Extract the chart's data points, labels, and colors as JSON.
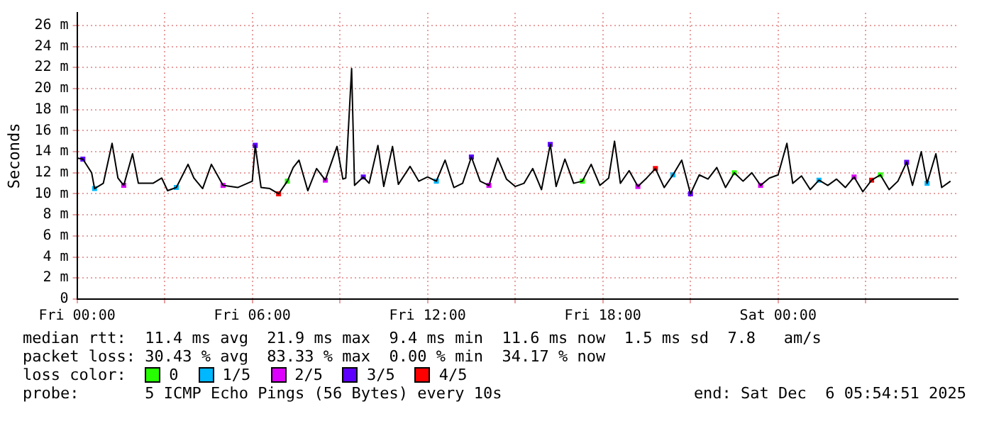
{
  "chart_data": {
    "type": "line",
    "ylabel": "Seconds",
    "legend_title": "loss color:",
    "legend": "bottom",
    "grid": true,
    "xlim": [
      "2025-12-05T00:00",
      "2025-12-06T06:09"
    ],
    "xticks": [
      {
        "value": "2025-12-05T00:00",
        "label": "Fri 00:00"
      },
      {
        "value": "2025-12-05T03:00",
        "label": null
      },
      {
        "value": "2025-12-05T06:00",
        "label": "Fri 06:00"
      },
      {
        "value": "2025-12-05T09:00",
        "label": null
      },
      {
        "value": "2025-12-05T12:00",
        "label": "Fri 12:00"
      },
      {
        "value": "2025-12-05T15:00",
        "label": null
      },
      {
        "value": "2025-12-05T18:00",
        "label": "Fri 18:00"
      },
      {
        "value": "2025-12-05T21:00",
        "label": null
      },
      {
        "value": "2025-12-06T00:00",
        "label": "Sat 00:00"
      },
      {
        "value": "2025-12-06T03:00",
        "label": null
      }
    ],
    "ylim": [
      0,
      27.2
    ],
    "yticks": [
      0,
      {
        "value": 2,
        "label": "2 m"
      },
      {
        "value": 4,
        "label": "4 m"
      },
      {
        "value": 6,
        "label": "6 m"
      },
      {
        "value": 8,
        "label": "8 m"
      },
      {
        "value": 10,
        "label": "10 m"
      },
      {
        "value": 12,
        "label": "12 m"
      },
      {
        "value": 14,
        "label": "14 m"
      },
      {
        "value": 16,
        "label": "16 m"
      },
      {
        "value": 18,
        "label": "18 m"
      },
      {
        "value": 20,
        "label": "20 m"
      },
      {
        "value": 22,
        "label": "22 m"
      },
      {
        "value": 24,
        "label": "24 m"
      },
      {
        "value": 26,
        "label": "26 m"
      }
    ],
    "series": [
      {
        "color": "#000000",
        "marker": "none",
        "x": [
          "2025-12-05T00:00",
          "2025-12-05T00:12",
          "2025-12-05T00:30",
          "2025-12-05T00:36",
          "2025-12-05T00:54",
          "2025-12-05T01:12",
          "2025-12-05T01:24",
          "2025-12-05T01:36",
          "2025-12-05T01:54",
          "2025-12-05T02:06",
          "2025-12-05T02:36",
          "2025-12-05T02:54",
          "2025-12-05T03:06",
          "2025-12-05T03:24",
          "2025-12-05T03:48",
          "2025-12-05T04:00",
          "2025-12-05T04:18",
          "2025-12-05T04:36",
          "2025-12-05T05:00",
          "2025-12-05T05:30",
          "2025-12-05T06:00",
          "2025-12-05T06:06",
          "2025-12-05T06:18",
          "2025-12-05T06:36",
          "2025-12-05T06:54",
          "2025-12-05T07:12",
          "2025-12-05T07:24",
          "2025-12-05T07:36",
          "2025-12-05T07:54",
          "2025-12-05T08:12",
          "2025-12-05T08:30",
          "2025-12-05T08:54",
          "2025-12-05T09:06",
          "2025-12-05T09:12",
          "2025-12-05T09:24",
          "2025-12-05T09:30",
          "2025-12-05T09:48",
          "2025-12-05T10:00",
          "2025-12-05T10:18",
          "2025-12-05T10:30",
          "2025-12-05T10:48",
          "2025-12-05T11:00",
          "2025-12-05T11:24",
          "2025-12-05T11:42",
          "2025-12-05T12:00",
          "2025-12-05T12:18",
          "2025-12-05T12:36",
          "2025-12-05T12:54",
          "2025-12-05T13:12",
          "2025-12-05T13:30",
          "2025-12-05T13:48",
          "2025-12-05T14:06",
          "2025-12-05T14:24",
          "2025-12-05T14:42",
          "2025-12-05T15:00",
          "2025-12-05T15:18",
          "2025-12-05T15:36",
          "2025-12-05T15:54",
          "2025-12-05T16:12",
          "2025-12-05T16:24",
          "2025-12-05T16:42",
          "2025-12-05T17:00",
          "2025-12-05T17:18",
          "2025-12-05T17:36",
          "2025-12-05T17:54",
          "2025-12-05T18:12",
          "2025-12-05T18:24",
          "2025-12-05T18:36",
          "2025-12-05T18:54",
          "2025-12-05T19:12",
          "2025-12-05T19:30",
          "2025-12-05T19:48",
          "2025-12-05T20:06",
          "2025-12-05T20:24",
          "2025-12-05T20:42",
          "2025-12-05T21:00",
          "2025-12-05T21:18",
          "2025-12-05T21:36",
          "2025-12-05T21:54",
          "2025-12-05T22:12",
          "2025-12-05T22:30",
          "2025-12-05T22:48",
          "2025-12-05T23:06",
          "2025-12-05T23:24",
          "2025-12-05T23:42",
          "2025-12-06T00:00",
          "2025-12-06T00:18",
          "2025-12-06T00:30",
          "2025-12-06T00:48",
          "2025-12-06T01:06",
          "2025-12-06T01:24",
          "2025-12-06T01:42",
          "2025-12-06T02:00",
          "2025-12-06T02:18",
          "2025-12-06T02:36",
          "2025-12-06T02:54",
          "2025-12-06T03:12",
          "2025-12-06T03:30",
          "2025-12-06T03:48",
          "2025-12-06T04:06",
          "2025-12-06T04:24",
          "2025-12-06T04:36",
          "2025-12-06T04:54",
          "2025-12-06T05:06",
          "2025-12-06T05:24",
          "2025-12-06T05:36",
          "2025-12-06T05:54"
        ],
        "values": [
          13.4,
          13.3,
          12.0,
          10.5,
          11.0,
          14.8,
          11.5,
          10.8,
          13.8,
          11.0,
          11.0,
          11.5,
          10.3,
          10.6,
          12.8,
          11.5,
          10.5,
          12.8,
          10.8,
          10.6,
          11.2,
          14.6,
          10.6,
          10.5,
          10.0,
          11.2,
          12.5,
          13.2,
          10.3,
          12.4,
          11.3,
          14.5,
          11.4,
          11.5,
          21.9,
          10.8,
          11.6,
          11.0,
          14.6,
          10.7,
          14.5,
          10.9,
          12.6,
          11.2,
          11.6,
          11.2,
          13.2,
          10.6,
          11.0,
          13.5,
          11.2,
          10.8,
          13.4,
          11.4,
          10.7,
          11.0,
          12.4,
          10.4,
          14.7,
          10.7,
          13.3,
          11.0,
          11.2,
          12.8,
          10.8,
          11.5,
          15.0,
          11.0,
          12.2,
          10.7,
          11.5,
          12.4,
          10.6,
          11.8,
          13.2,
          10.0,
          11.8,
          11.4,
          12.5,
          10.6,
          12.0,
          11.2,
          12.0,
          10.8,
          11.5,
          11.8,
          14.8,
          11.0,
          11.7,
          10.4,
          11.3,
          10.8,
          11.4,
          10.6,
          11.6,
          10.2,
          11.3,
          11.8,
          10.4,
          11.2,
          13.0,
          10.8,
          14.0,
          11.0,
          13.8,
          10.6,
          11.2
        ]
      },
      {
        "type": "scatter",
        "name": "0",
        "color": "#26ff00",
        "marker": "square",
        "x": [
          "2025-12-05T07:12",
          "2025-12-05T17:18",
          "2025-12-05T22:30",
          "2025-12-06T03:30"
        ],
        "values": [
          11.2,
          11.2,
          12.0,
          11.8
        ]
      },
      {
        "type": "scatter",
        "name": "1/5",
        "color": "#00b8ff",
        "marker": "square",
        "x": [
          "2025-12-05T00:36",
          "2025-12-05T03:24",
          "2025-12-05T12:18",
          "2025-12-05T20:24",
          "2025-12-06T01:24",
          "2025-12-06T05:06"
        ],
        "values": [
          10.5,
          10.6,
          11.2,
          11.8,
          11.3,
          11.0
        ]
      },
      {
        "type": "scatter",
        "name": "2/5",
        "color": "#dd00ff",
        "marker": "square",
        "x": [
          "2025-12-05T01:36",
          "2025-12-05T05:00",
          "2025-12-05T08:30",
          "2025-12-05T14:06",
          "2025-12-05T19:12",
          "2025-12-05T23:24",
          "2025-12-06T02:36"
        ],
        "values": [
          10.8,
          10.8,
          11.3,
          10.8,
          10.7,
          10.8,
          11.6
        ]
      },
      {
        "type": "scatter",
        "name": "3/5",
        "color": "#5e00ff",
        "marker": "square",
        "x": [
          "2025-12-05T00:12",
          "2025-12-05T06:06",
          "2025-12-05T09:48",
          "2025-12-05T13:30",
          "2025-12-05T16:12",
          "2025-12-05T21:00",
          "2025-12-06T04:24"
        ],
        "values": [
          13.3,
          14.6,
          11.6,
          13.5,
          14.7,
          10.0,
          13.0
        ]
      },
      {
        "type": "scatter",
        "name": "4/5",
        "color": "#ff0000",
        "marker": "square",
        "x": [
          "2025-12-05T06:54",
          "2025-12-05T19:48",
          "2025-12-06T03:12"
        ],
        "values": [
          10.0,
          12.4,
          11.3
        ]
      }
    ],
    "annotations": [
      "median rtt:  11.4 ms avg  21.9 ms max  9.4 ms min  11.6 ms now  1.5 ms sd  7.8   am/s",
      "packet loss: 30.43 % avg  83.33 % max  0.00 % min  34.17 % now",
      "probe:       5 ICMP Echo Pings (56 Bytes) every 10s",
      "end: Sat Dec  6 05:54:51 2025"
    ]
  }
}
